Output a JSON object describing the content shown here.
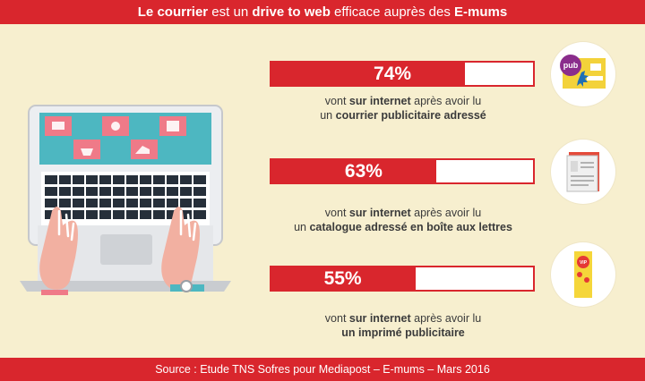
{
  "header": {
    "parts": [
      "Le courrier",
      " est un ",
      "drive to web",
      " efficace auprès des ",
      "E-mums"
    ]
  },
  "stats": [
    {
      "percent_label": "74%",
      "value": 74,
      "line1": [
        "vont ",
        "sur internet",
        " après avoir lu"
      ],
      "line2": [
        "un ",
        "courrier publicitaire adressé",
        ""
      ],
      "icon": "pub-envelope-icon"
    },
    {
      "percent_label": "63%",
      "value": 63,
      "line1": [
        "vont ",
        "sur internet",
        " après avoir lu"
      ],
      "line2": [
        "un ",
        "catalogue adressé en boîte aux lettres",
        ""
      ],
      "icon": "catalogue-icon"
    },
    {
      "percent_label": "55%",
      "value": 55,
      "line1": [
        "vont ",
        "sur internet",
        " après avoir lu"
      ],
      "line2": [
        "",
        "un imprimé publicitaire",
        ""
      ],
      "icon": "flyer-icon"
    }
  ],
  "chart_data": {
    "type": "bar",
    "categories": [
      "un courrier publicitaire adressé",
      "un catalogue adressé en boîte aux lettres",
      "un imprimé publicitaire"
    ],
    "values": [
      74,
      63,
      55
    ],
    "ylim": [
      0,
      100
    ]
  },
  "icons": {
    "pub_label": "pub",
    "flyer_label": "VIP"
  },
  "colors": {
    "accent": "#d9262d",
    "background": "#f7efcf",
    "text": "#3b3b3b"
  },
  "footer": {
    "source": "Source : Etude TNS Sofres pour Mediapost – E-mums – Mars 2016"
  }
}
